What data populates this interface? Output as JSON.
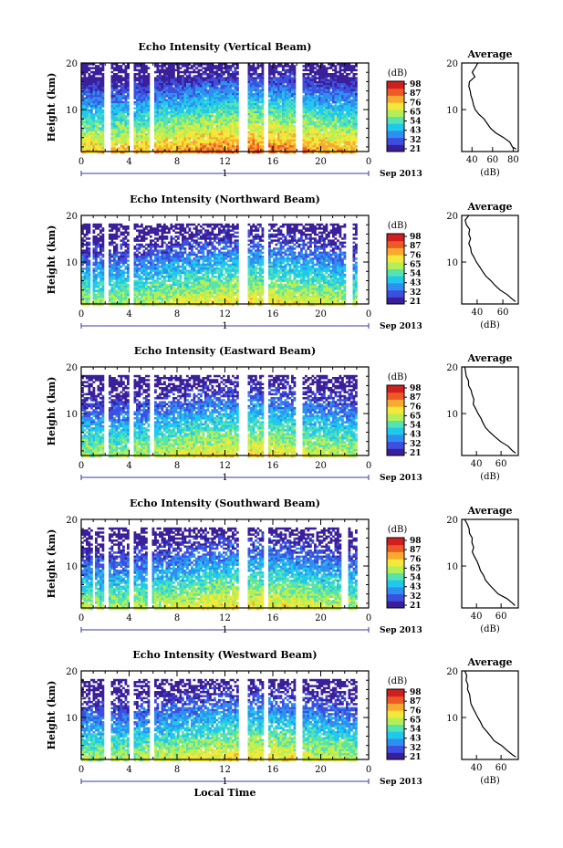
{
  "chart_data": [
    {
      "type": "heatmap",
      "title": "Echo Intensity (Vertical Beam)",
      "ylabel": "Height (km)",
      "xticks": [
        "0",
        "4",
        "8",
        "12",
        "16",
        "20",
        "0"
      ],
      "yticks": [
        "20",
        "10"
      ],
      "xlim": [
        0,
        24
      ],
      "ylim": [
        1,
        20
      ],
      "date_label": "1",
      "month_label": "Sep 2013",
      "colorbar": {
        "unit": "(dB)",
        "ticks": [
          "98",
          "87",
          "76",
          "65",
          "54",
          "43",
          "32",
          "21"
        ],
        "range": [
          21,
          98
        ]
      },
      "gaps": [
        [
          1.8,
          2.3
        ],
        [
          3.9,
          4.3
        ],
        [
          5.6,
          6.0
        ],
        [
          13.1,
          13.8
        ],
        [
          15.2,
          15.6
        ],
        [
          17.8,
          18.4
        ]
      ],
      "average": {
        "title": "Average",
        "xlabel": "(dB)",
        "xticks": [
          "40",
          "60",
          "80"
        ],
        "xlim": [
          30,
          85
        ],
        "profile": [
          [
            1.5,
            83
          ],
          [
            2,
            80
          ],
          [
            3,
            76
          ],
          [
            4,
            70
          ],
          [
            5,
            63
          ],
          [
            6,
            58
          ],
          [
            7,
            54
          ],
          [
            8,
            51
          ],
          [
            9,
            47
          ],
          [
            10,
            44
          ],
          [
            11,
            42
          ],
          [
            12,
            40
          ],
          [
            13,
            39
          ],
          [
            14,
            38
          ],
          [
            15,
            37
          ],
          [
            16,
            38
          ],
          [
            17,
            43
          ],
          [
            18,
            41
          ],
          [
            19,
            44
          ],
          [
            20,
            46
          ]
        ]
      }
    },
    {
      "type": "heatmap",
      "title": "Echo Intensity (Northward Beam)",
      "ylabel": "Height (km)",
      "xticks": [
        "0",
        "4",
        "8",
        "12",
        "16",
        "20",
        "0"
      ],
      "yticks": [
        "20",
        "10"
      ],
      "xlim": [
        0,
        24
      ],
      "ylim": [
        1,
        20
      ],
      "date_label": "1",
      "month_label": "Sep 2013",
      "colorbar": {
        "unit": "(dB)",
        "ticks": [
          "98",
          "87",
          "76",
          "65",
          "54",
          "43",
          "32",
          "21"
        ],
        "range": [
          21,
          98
        ]
      },
      "gaps": [
        [
          0.6,
          0.9
        ],
        [
          1.8,
          2.2
        ],
        [
          3.9,
          4.2
        ],
        [
          13.1,
          13.8
        ],
        [
          15.2,
          15.6
        ],
        [
          22.0,
          22.5
        ]
      ],
      "average": {
        "title": "Average",
        "xlabel": "(dB)",
        "xticks": [
          "40",
          "60"
        ],
        "xlim": [
          28,
          72
        ],
        "profile": [
          [
            1.5,
            70
          ],
          [
            2,
            68
          ],
          [
            3,
            64
          ],
          [
            4,
            58
          ],
          [
            5,
            54
          ],
          [
            6,
            50
          ],
          [
            7,
            47
          ],
          [
            8,
            44
          ],
          [
            9,
            42
          ],
          [
            10,
            40
          ],
          [
            11,
            38
          ],
          [
            12,
            36
          ],
          [
            13,
            35
          ],
          [
            14,
            34
          ],
          [
            15,
            35
          ],
          [
            16,
            33
          ],
          [
            17,
            34
          ],
          [
            18,
            32
          ],
          [
            19,
            31
          ],
          [
            20,
            33
          ]
        ]
      }
    },
    {
      "type": "heatmap",
      "title": "Echo Intensity (Eastward Beam)",
      "ylabel": "Height (km)",
      "xticks": [
        "0",
        "4",
        "8",
        "12",
        "16",
        "20",
        "0"
      ],
      "yticks": [
        "20",
        "10"
      ],
      "xlim": [
        0,
        24
      ],
      "ylim": [
        1,
        20
      ],
      "date_label": "1",
      "month_label": "Sep 2013",
      "colorbar": {
        "unit": "(dB)",
        "ticks": [
          "98",
          "87",
          "76",
          "65",
          "54",
          "43",
          "32",
          "21"
        ],
        "range": [
          21,
          98
        ]
      },
      "gaps": [
        [
          1.8,
          2.2
        ],
        [
          3.9,
          4.3
        ],
        [
          5.6,
          6.0
        ],
        [
          13.1,
          13.8
        ],
        [
          15.2,
          15.6
        ],
        [
          17.8,
          18.3
        ]
      ],
      "average": {
        "title": "Average",
        "xlabel": "(dB)",
        "xticks": [
          "40",
          "60"
        ],
        "xlim": [
          28,
          74
        ],
        "profile": [
          [
            1.5,
            72
          ],
          [
            2,
            70
          ],
          [
            3,
            66
          ],
          [
            4,
            60
          ],
          [
            5,
            55
          ],
          [
            6,
            51
          ],
          [
            7,
            48
          ],
          [
            8,
            45
          ],
          [
            9,
            43
          ],
          [
            10,
            41
          ],
          [
            11,
            39
          ],
          [
            12,
            37
          ],
          [
            13,
            38
          ],
          [
            14,
            36
          ],
          [
            15,
            35
          ],
          [
            16,
            34
          ],
          [
            17,
            33
          ],
          [
            18,
            32
          ],
          [
            19,
            31
          ],
          [
            20,
            31
          ]
        ]
      }
    },
    {
      "type": "heatmap",
      "title": "Echo Intensity (Southward Beam)",
      "ylabel": "Height (km)",
      "xticks": [
        "0",
        "4",
        "8",
        "12",
        "16",
        "20",
        "0"
      ],
      "yticks": [
        "20",
        "10"
      ],
      "xlim": [
        0,
        24
      ],
      "ylim": [
        1,
        20
      ],
      "date_label": "1",
      "month_label": "Sep 2013",
      "colorbar": {
        "unit": "(dB)",
        "ticks": [
          "98",
          "87",
          "76",
          "65",
          "54",
          "43",
          "32",
          "21"
        ],
        "range": [
          21,
          98
        ]
      },
      "gaps": [
        [
          0.8,
          1.1
        ],
        [
          1.8,
          2.2
        ],
        [
          3.9,
          4.2
        ],
        [
          5.5,
          5.9
        ],
        [
          13.1,
          13.8
        ],
        [
          15.2,
          15.6
        ],
        [
          21.7,
          22.1
        ]
      ],
      "average": {
        "title": "Average",
        "xlabel": "(dB)",
        "xticks": [
          "40",
          "60"
        ],
        "xlim": [
          28,
          74
        ],
        "profile": [
          [
            1.5,
            72
          ],
          [
            2,
            69
          ],
          [
            3,
            65
          ],
          [
            4,
            58
          ],
          [
            5,
            54
          ],
          [
            6,
            50
          ],
          [
            7,
            47
          ],
          [
            8,
            45
          ],
          [
            9,
            43
          ],
          [
            10,
            42
          ],
          [
            11,
            40
          ],
          [
            12,
            38
          ],
          [
            13,
            37
          ],
          [
            14,
            38
          ],
          [
            15,
            36
          ],
          [
            16,
            37
          ],
          [
            17,
            35
          ],
          [
            18,
            34
          ],
          [
            19,
            32
          ],
          [
            20,
            31
          ]
        ]
      }
    },
    {
      "type": "heatmap",
      "title": "Echo Intensity (Westward Beam)",
      "ylabel": "Height (km)",
      "xlabel": "Local Time",
      "xticks": [
        "0",
        "4",
        "8",
        "12",
        "16",
        "20",
        "0"
      ],
      "yticks": [
        "20",
        "10"
      ],
      "xlim": [
        0,
        24
      ],
      "ylim": [
        1,
        20
      ],
      "date_label": "1",
      "month_label": "Sep 2013",
      "colorbar": {
        "unit": "(dB)",
        "ticks": [
          "98",
          "87",
          "76",
          "65",
          "54",
          "43",
          "32",
          "21"
        ],
        "range": [
          21,
          98
        ]
      },
      "gaps": [
        [
          1.8,
          2.3
        ],
        [
          3.9,
          4.3
        ],
        [
          5.6,
          6.0
        ],
        [
          13.1,
          13.8
        ],
        [
          15.2,
          15.6
        ],
        [
          17.8,
          18.3
        ]
      ],
      "average": {
        "title": "Average",
        "xlabel": "(dB)",
        "xticks": [
          "40",
          "60"
        ],
        "xlim": [
          28,
          74
        ],
        "profile": [
          [
            1.5,
            72
          ],
          [
            2,
            70
          ],
          [
            3,
            65
          ],
          [
            4,
            60
          ],
          [
            5,
            55
          ],
          [
            6,
            51
          ],
          [
            7,
            48
          ],
          [
            8,
            45
          ],
          [
            9,
            43
          ],
          [
            10,
            41
          ],
          [
            11,
            39
          ],
          [
            12,
            37
          ],
          [
            13,
            36
          ],
          [
            14,
            35
          ],
          [
            15,
            34
          ],
          [
            16,
            33
          ],
          [
            17,
            33
          ],
          [
            18,
            31
          ],
          [
            19,
            32
          ],
          [
            20,
            31
          ]
        ]
      }
    }
  ],
  "colors": {
    "colormap": [
      "#3a1f9a",
      "#3d4fe0",
      "#2e8ff0",
      "#20c8ee",
      "#55e3b0",
      "#b6ef55",
      "#f5e83a",
      "#f9a92f",
      "#ee5a26",
      "#d01f1f"
    ]
  }
}
